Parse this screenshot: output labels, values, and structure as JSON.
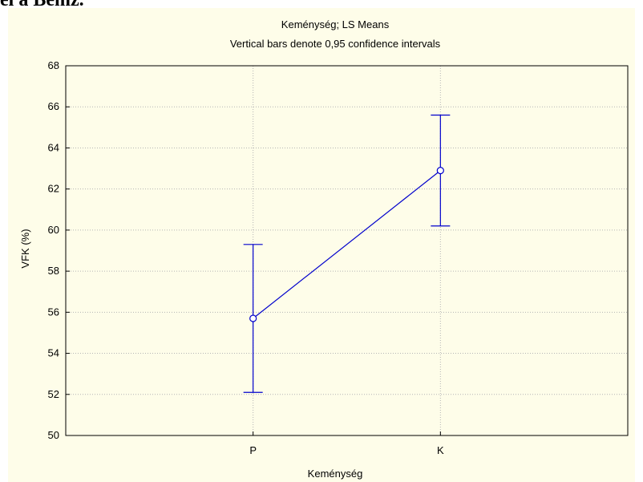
{
  "page_header_fragment": "el a Bemz.",
  "chart_data": {
    "type": "line",
    "title": "Keménység; LS Means",
    "subtitle": "Vertical bars denote 0,95 confidence intervals",
    "xlabel": "Keménység",
    "ylabel": "VFK (%)",
    "categories": [
      "P",
      "K"
    ],
    "series": [
      {
        "values": [
          55.7,
          62.9
        ],
        "ci_lower": [
          52.1,
          60.2
        ],
        "ci_upper": [
          59.3,
          65.6
        ]
      }
    ],
    "ylim": [
      50,
      68
    ],
    "yticks": [
      50,
      52,
      54,
      56,
      58,
      60,
      62,
      64,
      66,
      68
    ],
    "grid": true,
    "colors": {
      "series": "#0000cc",
      "panel": "#fefde9",
      "grid": "#b4b4b4"
    }
  }
}
